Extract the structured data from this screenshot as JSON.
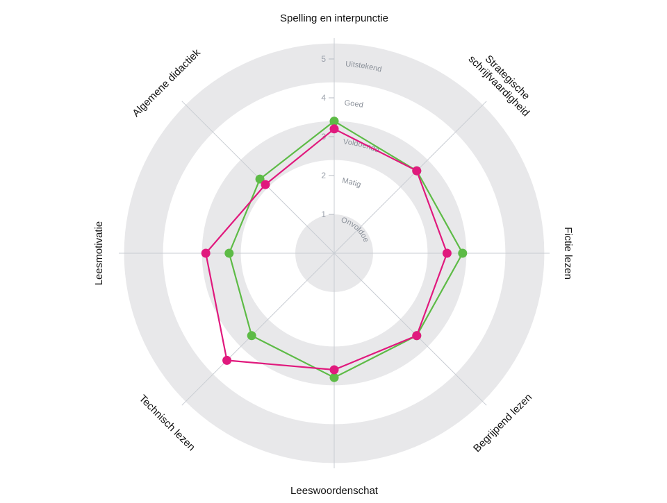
{
  "chart_data": {
    "type": "radar",
    "axes": [
      "Spelling en interpunctie",
      "Strategische schrijfvaardigheid",
      "Fictie lezen",
      "Begrijpend lezen",
      "Leeswoordenschat",
      "Technisch lezen",
      "Leesmotivatie",
      "Algemene didactiek"
    ],
    "rlim": [
      0,
      5
    ],
    "ticks": [
      1,
      2,
      3,
      4,
      5
    ],
    "levels": [
      "Onvoldoende",
      "Matig",
      "Voldoende",
      "Goed",
      "Uitstekend"
    ],
    "grid": true,
    "series": [
      {
        "color": "#5dbb46",
        "values": [
          3.4,
          3.0,
          3.3,
          3.0,
          3.2,
          3.0,
          2.7,
          2.7
        ]
      },
      {
        "color": "#e0197d",
        "values": [
          3.2,
          3.0,
          2.9,
          3.0,
          3.0,
          3.9,
          3.3,
          2.5
        ]
      }
    ]
  }
}
